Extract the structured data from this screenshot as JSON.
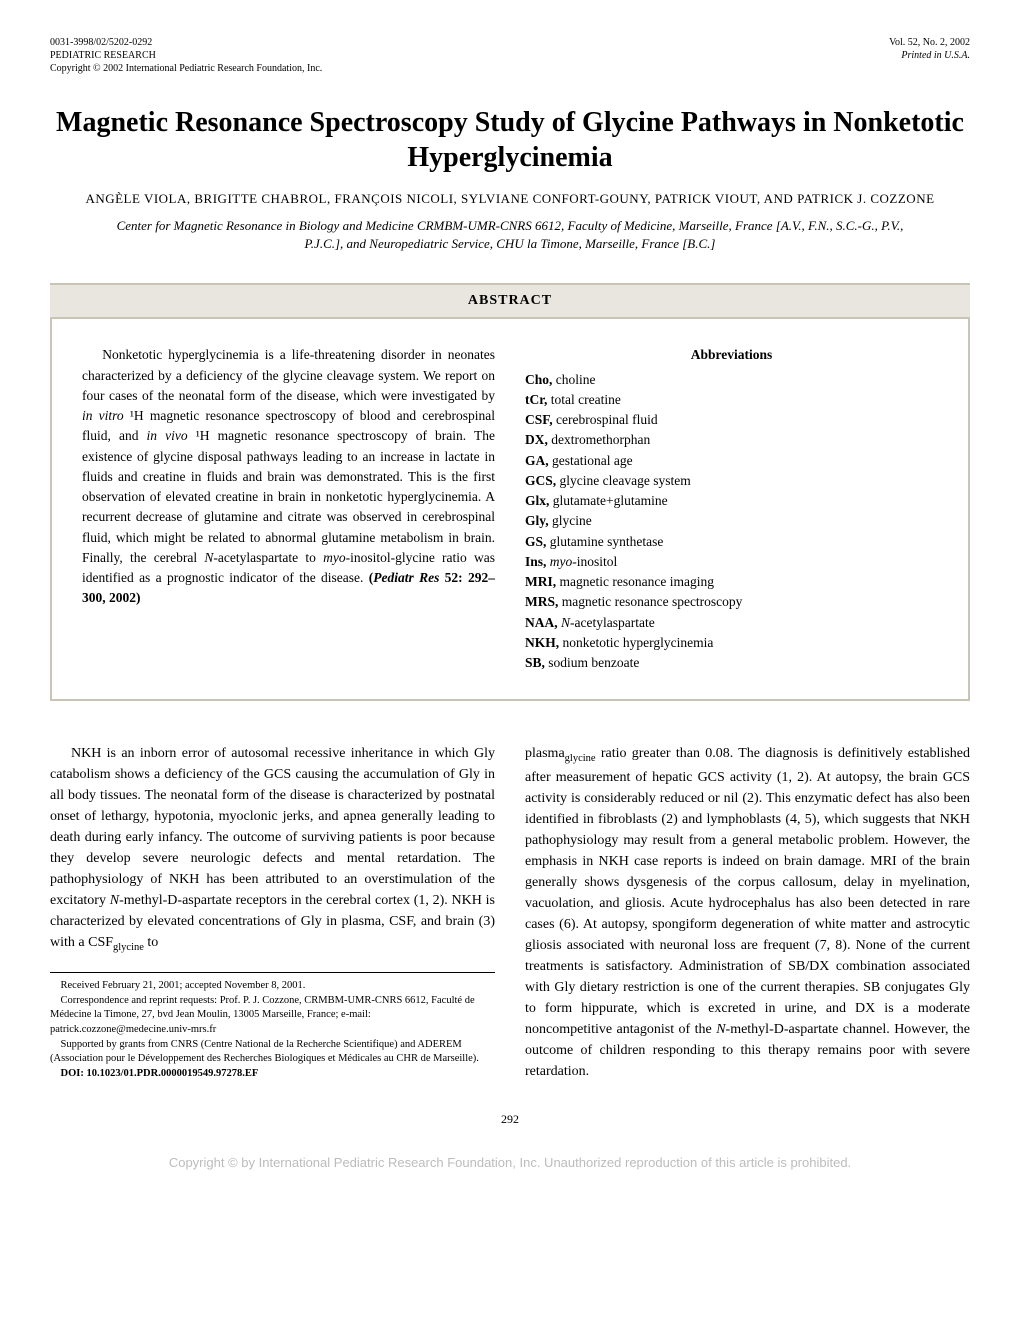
{
  "header": {
    "left_line1": "0031-3998/02/5202-0292",
    "left_line2": "PEDIATRIC RESEARCH",
    "left_line3": "Copyright © 2002 International Pediatric Research Foundation, Inc.",
    "right_line1": "Vol. 52, No. 2, 2002",
    "right_line2": "Printed in U.S.A."
  },
  "title": "Magnetic Resonance Spectroscopy Study of Glycine Pathways in Nonketotic Hyperglycinemia",
  "authors": "ANGÈLE VIOLA, BRIGITTE CHABROL, FRANÇOIS NICOLI, SYLVIANE CONFORT-GOUNY, PATRICK VIOUT, AND PATRICK J. COZZONE",
  "affiliation": "Center for Magnetic Resonance in Biology and Medicine CRMBM-UMR-CNRS 6612, Faculty of Medicine, Marseille, France [A.V., F.N., S.C.-G., P.V., P.J.C.], and Neuropediatric Service, CHU la Timone, Marseille, France [B.C.]",
  "abstract_label": "ABSTRACT",
  "abstract_text_pre": "Nonketotic hyperglycinemia is a life-threatening disorder in neonates characterized by a deficiency of the glycine cleavage system. We report on four cases of the neonatal form of the disease, which were investigated by ",
  "abstract_text_invitro": "in vitro ",
  "abstract_text_h1": "¹H magnetic resonance spectroscopy of blood and cerebrospinal fluid, and ",
  "abstract_text_invivo": "in vivo ",
  "abstract_text_mid": "¹H magnetic resonance spectroscopy of brain. The existence of glycine disposal pathways leading to an increase in lactate in fluids and creatine in fluids and brain was demonstrated. This is the first observation of elevated creatine in brain in nonketotic hyperglycinemia. A recurrent decrease of glutamine and citrate was observed in cerebrospinal fluid, which might be related to abnormal glutamine metabolism in brain. Finally, the cerebral ",
  "abstract_text_naa": "N-",
  "abstract_text_post1": "acetylaspartate to ",
  "abstract_text_myo": "myo-",
  "abstract_text_post2": "inositol-glycine ratio was identified as a prognostic indicator of the disease. ",
  "abstract_citation": "(",
  "abstract_citation_ital": "Pediatr Res",
  "abstract_citation_end": " 52: 292–300, 2002)",
  "abbreviations_title": "Abbreviations",
  "abbreviations": [
    {
      "abbr": "Cho,",
      "def": " choline"
    },
    {
      "abbr": "tCr,",
      "def": " total creatine"
    },
    {
      "abbr": "CSF,",
      "def": " cerebrospinal fluid"
    },
    {
      "abbr": "DX,",
      "def": " dextromethorphan"
    },
    {
      "abbr": "GA,",
      "def": " gestational age"
    },
    {
      "abbr": "GCS,",
      "def": " glycine cleavage system"
    },
    {
      "abbr": "Glx,",
      "def": " glutamate+glutamine"
    },
    {
      "abbr": "Gly,",
      "def": " glycine"
    },
    {
      "abbr": "GS,",
      "def": " glutamine synthetase"
    },
    {
      "abbr": "Ins,",
      "def_ital": "myo",
      "def": "-inositol"
    },
    {
      "abbr": "MRI,",
      "def": " magnetic resonance imaging"
    },
    {
      "abbr": "MRS,",
      "def": " magnetic resonance spectroscopy"
    },
    {
      "abbr": "NAA,",
      "def_ital": "N",
      "def": "-acetylaspartate"
    },
    {
      "abbr": "NKH,",
      "def": " nonketotic hyperglycinemia"
    },
    {
      "abbr": "SB,",
      "def": " sodium benzoate"
    }
  ],
  "body_left_1a": "NKH is an inborn error of autosomal recessive inheritance in which Gly catabolism shows a deficiency of the GCS causing the accumulation of Gly in all body tissues. The neonatal form of the disease is characterized by postnatal onset of lethargy, hypotonia, myoclonic jerks, and apnea generally leading to death during early infancy. The outcome of surviving patients is poor because they develop severe neurologic defects and mental retardation. The pathophysiology of NKH has been attributed to an overstimulation of the excitatory ",
  "body_left_1_nmda1": "N",
  "body_left_1b": "-methyl-",
  "body_left_1_d": "D",
  "body_left_1c": "-aspartate receptors in the cerebral cortex (1, 2). NKH is characterized by elevated concentrations of Gly in plasma, CSF, and brain (3) with a CSF",
  "body_left_1_sub": "glycine",
  "body_left_1d": " to",
  "body_right_1a": "plasma",
  "body_right_1_sub": "glycine",
  "body_right_1b": " ratio greater than 0.08. The diagnosis is definitively established after measurement of hepatic GCS activity (1, 2). At autopsy, the brain GCS activity is considerably reduced or nil (2). This enzymatic defect has also been identified in fibroblasts (2) and lymphoblasts (4, 5), which suggests that NKH pathophysiology may result from a general metabolic problem. However, the emphasis in NKH case reports is indeed on brain damage. MRI of the brain generally shows dysgenesis of the corpus callosum, delay in myelination, vacuolation, and gliosis. Acute hydrocephalus has also been detected in rare cases (6). At autopsy, spongiform degeneration of white matter and astrocytic gliosis associated with neuronal loss are frequent (7, 8). None of the current treatments is satisfactory. Administration of SB/DX combination associated with Gly dietary restriction is one of the current therapies. SB conjugates Gly to form hippurate, which is excreted in urine, and DX is a moderate noncompetitive antagonist of the ",
  "body_right_1_nmda1": "N",
  "body_right_1c": "-methyl-",
  "body_right_1_d": "D",
  "body_right_1d": "-aspartate channel. However, the outcome of children responding to this therapy remains poor with severe retardation.",
  "footnotes": {
    "received": "Received February 21, 2001; accepted November 8, 2001.",
    "correspondence": "Correspondence and reprint requests: Prof. P. J. Cozzone, CRMBM-UMR-CNRS 6612, Faculté de Médecine la Timone, 27, bvd Jean Moulin, 13005 Marseille, France; e-mail: patrick.cozzone@medecine.univ-mrs.fr",
    "supported": "Supported by grants from CNRS (Centre National de la Recherche Scientifique) and ADEREM (Association pour le Développement des Recherches Biologiques et Médicales au CHR de Marseille).",
    "doi": "DOI: 10.1023/01.PDR.0000019549.97278.EF"
  },
  "page_number": "292",
  "copyright": "Copyright © by International Pediatric Research Foundation, Inc. Unauthorized reproduction of this article is prohibited."
}
